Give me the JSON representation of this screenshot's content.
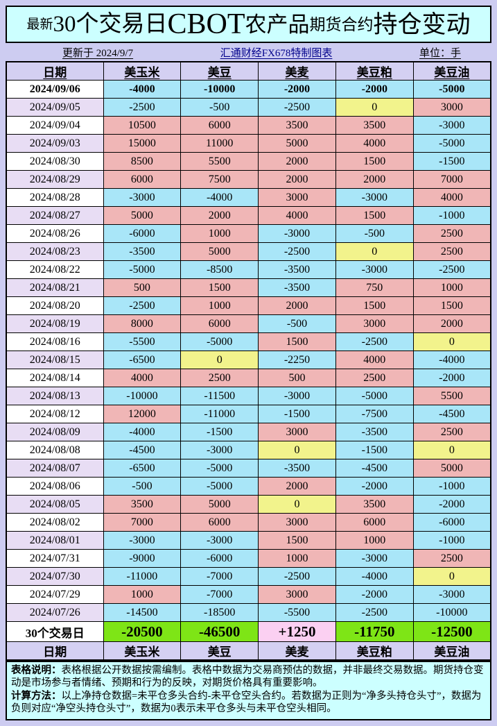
{
  "title": {
    "seg1": "最新",
    "seg2": "30个交易日",
    "seg3": "CBOT",
    "seg4": "农产品",
    "seg5": "期货合约",
    "seg6": "持仓变动"
  },
  "subtitle": {
    "updated": "更新于 2024/9/7",
    "source": "汇通财经FX678特制图表",
    "unit": "单位：手"
  },
  "chart_data": {
    "type": "table",
    "title": "最新30个交易日CBOT农产品期货合约持仓变动",
    "unit": "手",
    "columns": [
      "日期",
      "美玉米",
      "美豆",
      "美麦",
      "美豆粕",
      "美豆油"
    ],
    "rows": [
      {
        "date": "2024/09/06",
        "values": [
          -4000,
          -10000,
          -2000,
          -2000,
          -5000
        ]
      },
      {
        "date": "2024/09/05",
        "values": [
          -2500,
          -500,
          -2500,
          0,
          3000
        ]
      },
      {
        "date": "2024/09/04",
        "values": [
          10500,
          6000,
          3500,
          3500,
          -3000
        ]
      },
      {
        "date": "2024/09/03",
        "values": [
          15000,
          11000,
          5000,
          4000,
          -5000
        ]
      },
      {
        "date": "2024/08/30",
        "values": [
          8500,
          5500,
          2000,
          1500,
          -1500
        ]
      },
      {
        "date": "2024/08/29",
        "values": [
          6000,
          7500,
          2000,
          2000,
          7000
        ]
      },
      {
        "date": "2024/08/28",
        "values": [
          -3000,
          -4000,
          3000,
          -3000,
          4000
        ]
      },
      {
        "date": "2024/08/27",
        "values": [
          5000,
          2000,
          4000,
          1500,
          -1000
        ]
      },
      {
        "date": "2024/08/26",
        "values": [
          -6000,
          1000,
          -3000,
          -500,
          2500
        ]
      },
      {
        "date": "2024/08/23",
        "values": [
          -3500,
          5000,
          -2500,
          0,
          2500
        ]
      },
      {
        "date": "2024/08/22",
        "values": [
          -5000,
          -8500,
          -3500,
          -3000,
          -2500
        ]
      },
      {
        "date": "2024/08/21",
        "values": [
          500,
          1500,
          -3500,
          750,
          1000
        ]
      },
      {
        "date": "2024/08/20",
        "values": [
          -2500,
          1000,
          2000,
          1500,
          1500
        ]
      },
      {
        "date": "2024/08/19",
        "values": [
          8000,
          6000,
          -500,
          3000,
          2000
        ]
      },
      {
        "date": "2024/08/16",
        "values": [
          -5500,
          -5000,
          1500,
          -2500,
          0
        ]
      },
      {
        "date": "2024/08/15",
        "values": [
          -6500,
          0,
          -2250,
          4000,
          -4000
        ]
      },
      {
        "date": "2024/08/14",
        "values": [
          4000,
          2500,
          500,
          2500,
          -2000
        ]
      },
      {
        "date": "2024/08/13",
        "values": [
          -10000,
          -11500,
          -3000,
          -5000,
          5500
        ]
      },
      {
        "date": "2024/08/12",
        "values": [
          12000,
          -11000,
          -1500,
          -7500,
          -4500
        ]
      },
      {
        "date": "2024/08/09",
        "values": [
          -4000,
          -1500,
          3000,
          -3500,
          2500
        ]
      },
      {
        "date": "2024/08/08",
        "values": [
          -4500,
          -3000,
          0,
          -1500,
          0
        ]
      },
      {
        "date": "2024/08/07",
        "values": [
          -6500,
          -5000,
          -3500,
          -4500,
          5000
        ]
      },
      {
        "date": "2024/08/06",
        "values": [
          -500,
          -5000,
          2000,
          -2000,
          -1000
        ]
      },
      {
        "date": "2024/08/05",
        "values": [
          3500,
          5000,
          0,
          3500,
          -2000
        ]
      },
      {
        "date": "2024/08/02",
        "values": [
          7000,
          6000,
          3000,
          6000,
          -6000
        ]
      },
      {
        "date": "2024/08/01",
        "values": [
          -3000,
          -3000,
          1500,
          1000,
          -1000
        ]
      },
      {
        "date": "2024/07/31",
        "values": [
          -9000,
          -6000,
          1000,
          -3000,
          2500
        ]
      },
      {
        "date": "2024/07/30",
        "values": [
          -11000,
          -7000,
          -2500,
          -4000,
          0
        ]
      },
      {
        "date": "2024/07/29",
        "values": [
          1000,
          -7000,
          3000,
          -2000,
          -3000
        ]
      },
      {
        "date": "2024/07/26",
        "values": [
          -14500,
          -18500,
          -5500,
          -2500,
          -10000
        ]
      }
    ],
    "summary": {
      "label": "30个交易日",
      "values": [
        "-20500",
        "-46500",
        "+1250",
        "-11750",
        "-12500"
      ]
    }
  },
  "notes": {
    "label1": "表格说明：",
    "text1": "表格根据公开数据按需编制。表格中数据为交易商预估的数据，并非最终交易数据。期货持仓变动是市场参与者情绪、预期和行为的反映，对期货价格具有重要影响。",
    "label2": "计算方法：",
    "text2": "以上净持仓数据=未平仓多头合约-未平仓空头合约。若数据为正则为“净多头持仓头寸”，数据为负则对应“净空头持仓头寸”，数据为0表示未平仓多头与未平仓空头相同。"
  },
  "colors": {
    "page_bg": "#CDCCF1",
    "panel_cyan": "#CCFFFF",
    "header_bg": "#D4D0F2",
    "date_alt_bg": "#E8DDF4",
    "positive_bg": "#F0B6B6",
    "negative_bg": "#A9E6F8",
    "zero_bg": "#F2F38C",
    "summary_negative_bg": "#7EE516",
    "summary_positive_bg": "#FBD0F2",
    "source_text": "#00008B"
  }
}
